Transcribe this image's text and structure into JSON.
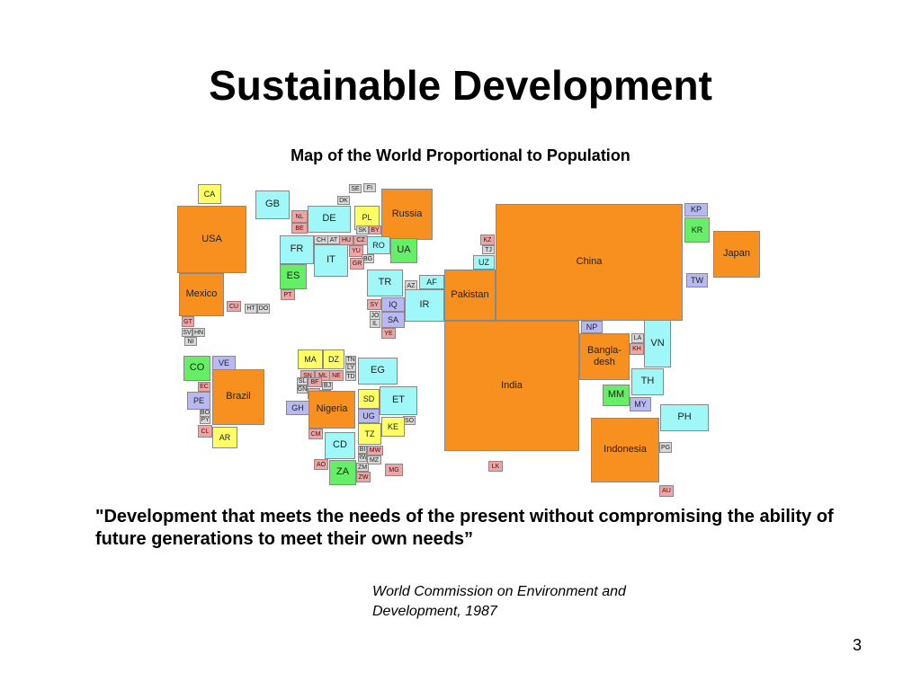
{
  "title": "Sustainable Development",
  "map": {
    "caption": "Map of the World Proportional to Population",
    "countries": [
      "CA",
      "USA",
      "Mexico",
      "CU",
      "HT",
      "DO",
      "GT",
      "SV",
      "HN",
      "NI",
      "GB",
      "NL",
      "BE",
      "DE",
      "SE",
      "FI",
      "DK",
      "PL",
      "Russia",
      "SK",
      "BY",
      "CH",
      "AT",
      "HU",
      "CZ",
      "RO",
      "UA",
      "FR",
      "YU",
      "BG",
      "IT",
      "GR",
      "ES",
      "PT",
      "KZ",
      "TJ",
      "UZ",
      "TR",
      "AZ",
      "AF",
      "IR",
      "Pakistan",
      "China",
      "KP",
      "KR",
      "Japan",
      "TW",
      "SY",
      "IQ",
      "JO",
      "IL",
      "SA",
      "YE",
      "India",
      "NP",
      "Bangla-desh",
      "LA",
      "KH",
      "VN",
      "TH",
      "MM",
      "MY",
      "PH",
      "Indonesia",
      "PG",
      "AU",
      "LK",
      "MA",
      "DZ",
      "TN",
      "LY",
      "TD",
      "SN",
      "ML",
      "NE",
      "EG",
      "SL",
      "GN",
      "BF",
      "BJ",
      "CI",
      "TG",
      "GH",
      "Nigeria",
      "SD",
      "ET",
      "UG",
      "SO",
      "KE",
      "CM",
      "TZ",
      "CD",
      "BI",
      "RW",
      "MW",
      "MZ",
      "ZM",
      "ZW",
      "AO",
      "ZA",
      "MG",
      "VE",
      "CO",
      "EC",
      "PE",
      "BO",
      "PY",
      "CL",
      "Brazil",
      "AR"
    ]
  },
  "quote": "\"Development that meets the needs of the present without compromising the ability of future generations to meet their own needs”",
  "attribution": "World Commission on Environment and Development, 1987",
  "page_number": "3"
}
